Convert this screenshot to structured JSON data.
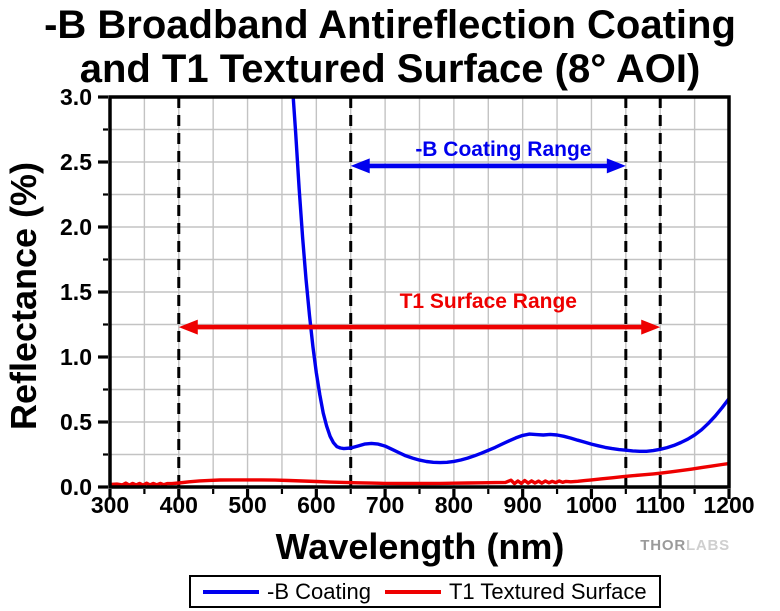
{
  "title": {
    "line1": "-B Broadband Antireflection Coating",
    "line2": "and T1 Textured Surface (8° AOI)"
  },
  "watermark": {
    "part1": "THOR",
    "part2": "LABS"
  },
  "legend": {
    "items": [
      {
        "label": "-B Coating",
        "color": "#0000ee"
      },
      {
        "label": "T1 Textured Surface",
        "color": "#ee0000"
      }
    ]
  },
  "chart_data": {
    "type": "line",
    "title": "-B Broadband Antireflection Coating and T1 Textured Surface (8° AOI)",
    "xlabel": "Wavelength (nm)",
    "ylabel": "Reflectance (%)",
    "xlim": [
      300,
      1200
    ],
    "ylim": [
      0,
      3
    ],
    "xticks": [
      300,
      400,
      500,
      600,
      700,
      800,
      900,
      1000,
      1100,
      1200
    ],
    "yticks": [
      "0.0",
      "0.5",
      "1.0",
      "1.5",
      "2.0",
      "2.5",
      "3.0"
    ],
    "x_minor_step": 50,
    "y_minor_step": 0.25,
    "grid": true,
    "grid_color": "#c3c3c3",
    "dashed_reference_lines_nm": [
      400,
      650,
      1050,
      1100
    ],
    "annotations": [
      {
        "text": "-B Coating Range",
        "color": "#0000ee",
        "arrow_from_nm": 650,
        "arrow_to_nm": 1050,
        "arrow_y_pct": 2.47,
        "label_x_nm": 872,
        "label_y_pct": 2.6
      },
      {
        "text": "T1 Surface Range",
        "color": "#ee0000",
        "arrow_from_nm": 400,
        "arrow_to_nm": 1100,
        "arrow_y_pct": 1.23,
        "label_x_nm": 850,
        "label_y_pct": 1.43
      }
    ],
    "series": [
      {
        "name": "-B Coating",
        "color": "#0000ee",
        "points": [
          [
            555,
            4.0
          ],
          [
            560,
            3.55
          ],
          [
            565,
            3.1
          ],
          [
            570,
            2.72
          ],
          [
            575,
            2.3
          ],
          [
            580,
            1.92
          ],
          [
            585,
            1.6
          ],
          [
            590,
            1.32
          ],
          [
            595,
            1.08
          ],
          [
            600,
            0.88
          ],
          [
            605,
            0.71
          ],
          [
            610,
            0.57
          ],
          [
            615,
            0.47
          ],
          [
            620,
            0.39
          ],
          [
            625,
            0.34
          ],
          [
            630,
            0.31
          ],
          [
            635,
            0.3
          ],
          [
            640,
            0.295
          ],
          [
            650,
            0.3
          ],
          [
            660,
            0.315
          ],
          [
            670,
            0.33
          ],
          [
            680,
            0.335
          ],
          [
            690,
            0.33
          ],
          [
            700,
            0.315
          ],
          [
            710,
            0.29
          ],
          [
            720,
            0.265
          ],
          [
            730,
            0.24
          ],
          [
            740,
            0.222
          ],
          [
            750,
            0.207
          ],
          [
            760,
            0.196
          ],
          [
            770,
            0.19
          ],
          [
            780,
            0.188
          ],
          [
            790,
            0.19
          ],
          [
            800,
            0.197
          ],
          [
            810,
            0.208
          ],
          [
            820,
            0.222
          ],
          [
            830,
            0.24
          ],
          [
            840,
            0.26
          ],
          [
            850,
            0.282
          ],
          [
            860,
            0.305
          ],
          [
            870,
            0.33
          ],
          [
            880,
            0.355
          ],
          [
            890,
            0.378
          ],
          [
            900,
            0.397
          ],
          [
            910,
            0.407
          ],
          [
            920,
            0.403
          ],
          [
            930,
            0.4
          ],
          [
            940,
            0.405
          ],
          [
            950,
            0.4
          ],
          [
            960,
            0.39
          ],
          [
            970,
            0.376
          ],
          [
            980,
            0.36
          ],
          [
            990,
            0.345
          ],
          [
            1000,
            0.33
          ],
          [
            1010,
            0.317
          ],
          [
            1020,
            0.305
          ],
          [
            1030,
            0.295
          ],
          [
            1040,
            0.288
          ],
          [
            1050,
            0.283
          ],
          [
            1060,
            0.278
          ],
          [
            1070,
            0.275
          ],
          [
            1080,
            0.275
          ],
          [
            1090,
            0.28
          ],
          [
            1100,
            0.29
          ],
          [
            1110,
            0.303
          ],
          [
            1120,
            0.32
          ],
          [
            1130,
            0.342
          ],
          [
            1140,
            0.368
          ],
          [
            1150,
            0.4
          ],
          [
            1160,
            0.44
          ],
          [
            1170,
            0.49
          ],
          [
            1180,
            0.545
          ],
          [
            1190,
            0.61
          ],
          [
            1200,
            0.68
          ]
        ]
      },
      {
        "name": "T1 Textured Surface",
        "color": "#ee0000",
        "points": [
          [
            300,
            0.02
          ],
          [
            310,
            0.022
          ],
          [
            318,
            0.016
          ],
          [
            323,
            0.03
          ],
          [
            328,
            0.015
          ],
          [
            333,
            0.028
          ],
          [
            338,
            0.016
          ],
          [
            343,
            0.028
          ],
          [
            348,
            0.015
          ],
          [
            353,
            0.029
          ],
          [
            358,
            0.016
          ],
          [
            363,
            0.027
          ],
          [
            368,
            0.017
          ],
          [
            373,
            0.028
          ],
          [
            378,
            0.018
          ],
          [
            383,
            0.026
          ],
          [
            390,
            0.026
          ],
          [
            400,
            0.031
          ],
          [
            415,
            0.04
          ],
          [
            430,
            0.047
          ],
          [
            445,
            0.051
          ],
          [
            460,
            0.054
          ],
          [
            480,
            0.055
          ],
          [
            500,
            0.055
          ],
          [
            520,
            0.055
          ],
          [
            540,
            0.053
          ],
          [
            560,
            0.05
          ],
          [
            580,
            0.046
          ],
          [
            600,
            0.042
          ],
          [
            620,
            0.038
          ],
          [
            640,
            0.035
          ],
          [
            660,
            0.032
          ],
          [
            680,
            0.03
          ],
          [
            700,
            0.028
          ],
          [
            720,
            0.027
          ],
          [
            740,
            0.027
          ],
          [
            760,
            0.027
          ],
          [
            780,
            0.028
          ],
          [
            800,
            0.029
          ],
          [
            820,
            0.031
          ],
          [
            840,
            0.032
          ],
          [
            860,
            0.034
          ],
          [
            875,
            0.035
          ],
          [
            883,
            0.052
          ],
          [
            888,
            0.026
          ],
          [
            893,
            0.046
          ],
          [
            898,
            0.028
          ],
          [
            903,
            0.05
          ],
          [
            908,
            0.03
          ],
          [
            913,
            0.047
          ],
          [
            918,
            0.031
          ],
          [
            923,
            0.045
          ],
          [
            928,
            0.03
          ],
          [
            933,
            0.046
          ],
          [
            938,
            0.032
          ],
          [
            943,
            0.044
          ],
          [
            948,
            0.034
          ],
          [
            953,
            0.046
          ],
          [
            958,
            0.036
          ],
          [
            963,
            0.043
          ],
          [
            970,
            0.04
          ],
          [
            980,
            0.044
          ],
          [
            990,
            0.049
          ],
          [
            1000,
            0.055
          ],
          [
            1015,
            0.063
          ],
          [
            1030,
            0.071
          ],
          [
            1045,
            0.079
          ],
          [
            1060,
            0.087
          ],
          [
            1075,
            0.094
          ],
          [
            1090,
            0.101
          ],
          [
            1100,
            0.106
          ],
          [
            1115,
            0.116
          ],
          [
            1130,
            0.126
          ],
          [
            1145,
            0.137
          ],
          [
            1160,
            0.149
          ],
          [
            1175,
            0.161
          ],
          [
            1190,
            0.173
          ],
          [
            1200,
            0.181
          ]
        ]
      }
    ]
  }
}
